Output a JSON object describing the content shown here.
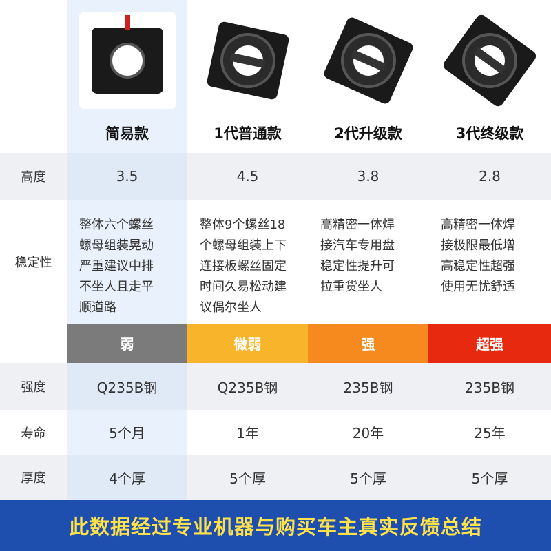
{
  "row_labels": [
    "高度",
    "稳定性",
    "强度",
    "寿命",
    "厚度"
  ],
  "columns": [
    {
      "name": "简易款",
      "height": "3.5",
      "stability": [
        "整体六个螺丝",
        "螺母组装晃动",
        "严重建议中排",
        "不坐人且走平",
        "顺道路"
      ],
      "rating": "弱",
      "rating_color": "#7b7b7b",
      "strength": "Q235B钢",
      "life": "5个月",
      "thickness": "4个厚"
    },
    {
      "name": "1代普通款",
      "height": "4.5",
      "stability": [
        "整体9个螺丝18",
        "个螺母组装上下",
        "连接板螺丝固定",
        "时间久易松动建",
        "议偶尔坐人"
      ],
      "rating": "微弱",
      "rating_color": "#f8b52b",
      "strength": "Q235B钢",
      "life": "1年",
      "thickness": "5个厚"
    },
    {
      "name": "2代升级款",
      "height": "3.8",
      "stability": [
        "高精密一体焊",
        "接汽车专用盘",
        "稳定性提升可",
        "拉重货坐人"
      ],
      "rating": "强",
      "rating_color": "#f68a1e",
      "strength": "235B钢",
      "life": "20年",
      "thickness": "5个厚"
    },
    {
      "name": "3代终级款",
      "height": "2.8",
      "stability": [
        "高精密一体焊",
        "接极限最低增",
        "高稳定性超强",
        "使用无忧舒适"
      ],
      "rating": "超强",
      "rating_color": "#e6290f",
      "strength": "235B钢",
      "life": "25年",
      "thickness": "5个厚"
    }
  ],
  "footer": "此数据经过专业机器与购买车主真实反馈总结"
}
